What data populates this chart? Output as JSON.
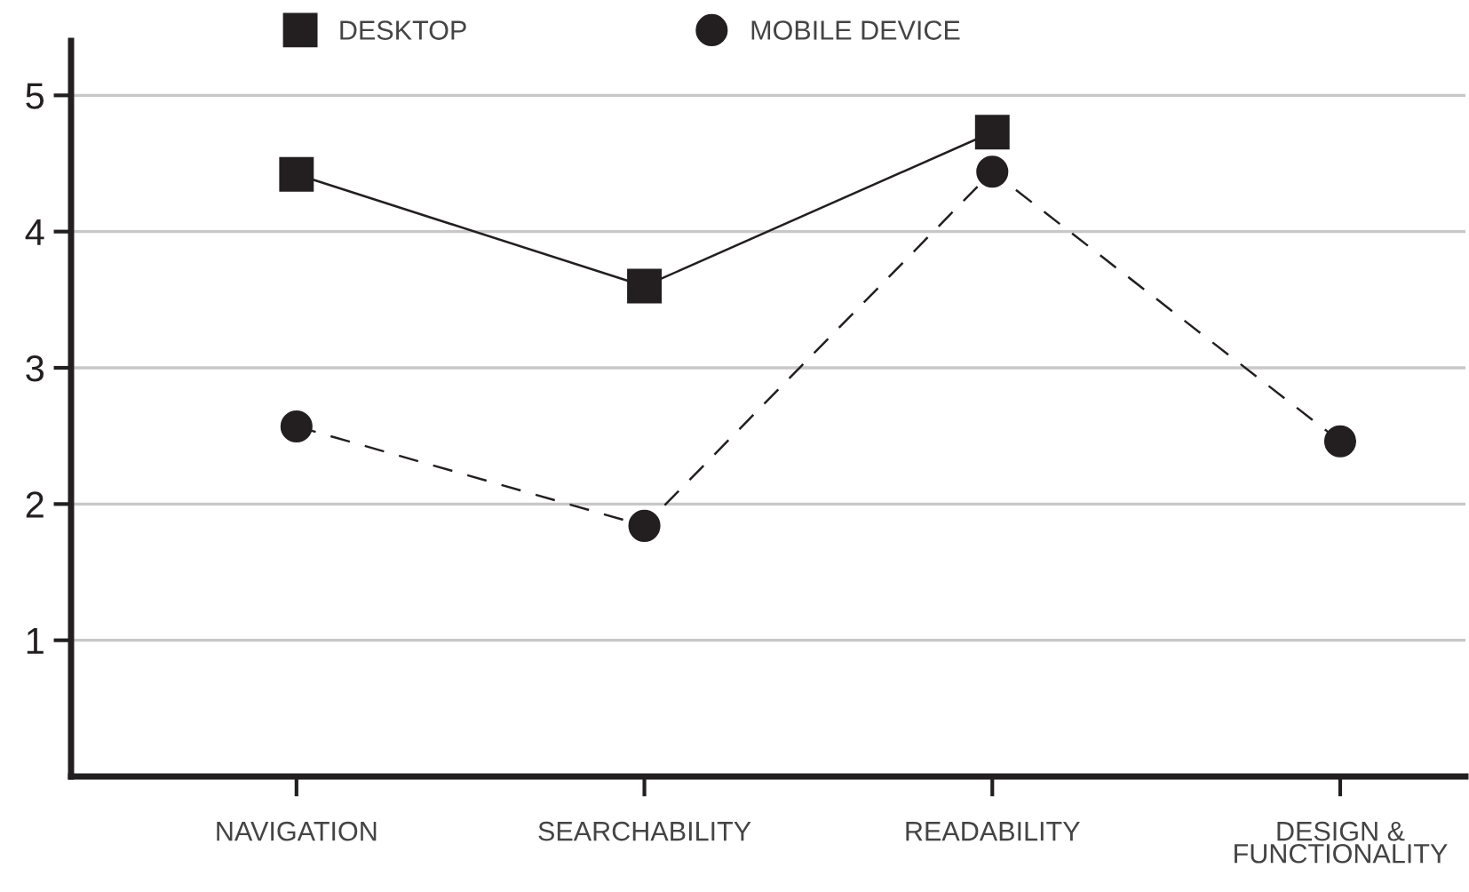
{
  "chart_data": {
    "type": "line",
    "categories": [
      "NAVIGATION",
      "SEARCHABILITY",
      "READABILITY",
      "DESIGN &\nFUNCTIONALITY"
    ],
    "series": [
      {
        "name": "DESKTOP",
        "color": "#231f20",
        "values": [
          4.42,
          3.6,
          4.73,
          null
        ],
        "marker": "square",
        "line_style": "solid"
      },
      {
        "name": "MOBILE DEVICE",
        "color": "#231f20",
        "values": [
          2.57,
          1.84,
          4.44,
          2.46
        ],
        "marker": "circle",
        "line_style": "dashed"
      }
    ],
    "ylim": [
      0,
      5.4
    ],
    "yticks": [
      1,
      2,
      3,
      4,
      5
    ],
    "grid": "y",
    "legend": "top"
  }
}
